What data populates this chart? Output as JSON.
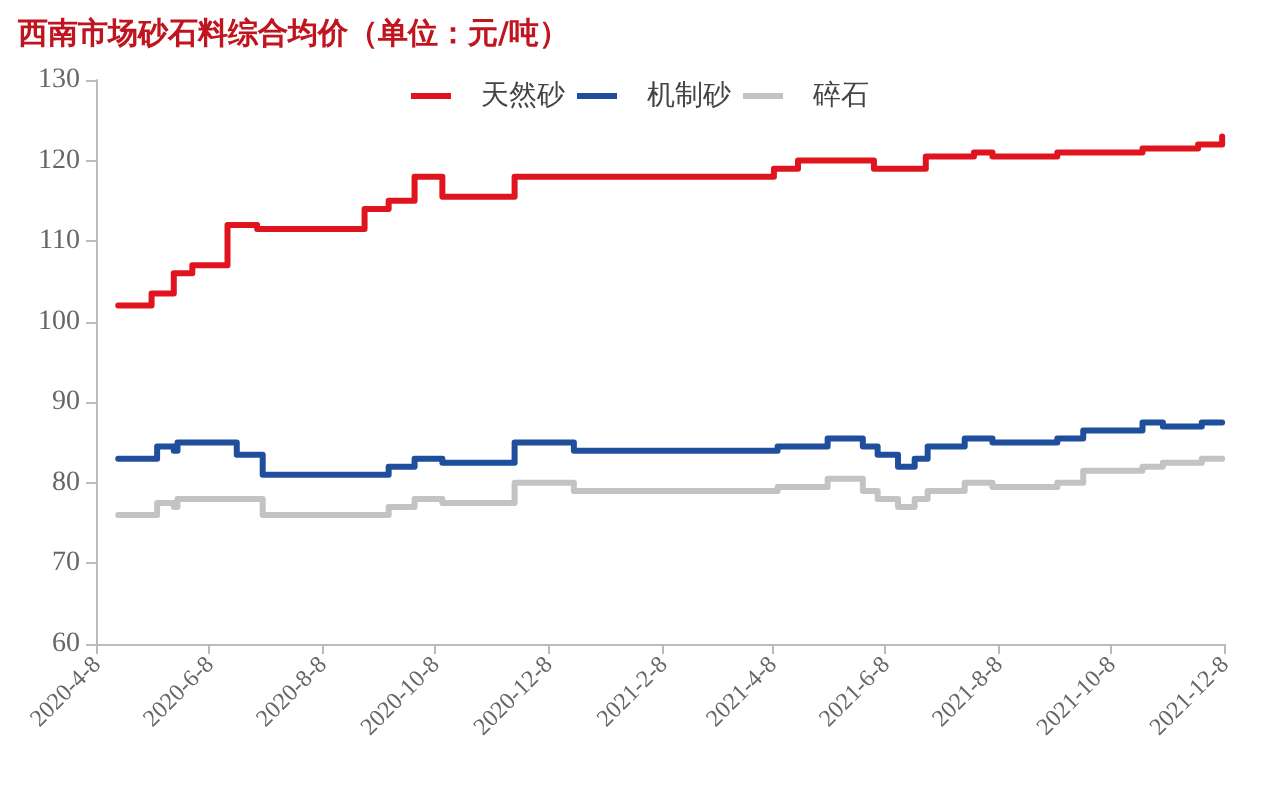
{
  "chart_data": {
    "type": "step",
    "title": "西南市场砂石料综合均价（单位：元/吨）",
    "xlim": [
      "2020-04-08",
      "2021-12-08"
    ],
    "xticks": [
      {
        "value": "2020-04-08",
        "label": "2020-4-8"
      },
      {
        "value": "2020-06-08",
        "label": "2020-6-8"
      },
      {
        "value": "2020-08-08",
        "label": "2020-8-8"
      },
      {
        "value": "2020-10-08",
        "label": "2020-10-8"
      },
      {
        "value": "2020-12-08",
        "label": "2020-12-8"
      },
      {
        "value": "2021-02-08",
        "label": "2021-2-8"
      },
      {
        "value": "2021-04-08",
        "label": "2021-4-8"
      },
      {
        "value": "2021-06-08",
        "label": "2021-6-8"
      },
      {
        "value": "2021-08-08",
        "label": "2021-8-8"
      },
      {
        "value": "2021-10-08",
        "label": "2021-10-8"
      },
      {
        "value": "2021-12-08",
        "label": "2021-12-8"
      }
    ],
    "ylim": [
      60,
      130
    ],
    "yticks": [
      60,
      70,
      80,
      90,
      100,
      110,
      120,
      130
    ],
    "legend": "top",
    "grid": false,
    "marker": "none",
    "line_style": "solid",
    "series": [
      {
        "name": "天然砂",
        "color": "#e0141e",
        "x": [
          "2020-04-20",
          "2020-05-08",
          "2020-05-20",
          "2020-05-30",
          "2020-06-18",
          "2020-07-04",
          "2020-08-31",
          "2020-09-13",
          "2020-09-27",
          "2020-10-12",
          "2020-11-20",
          "2021-04-09",
          "2021-04-22",
          "2021-06-02",
          "2021-06-30",
          "2021-07-26",
          "2021-08-05",
          "2021-09-09",
          "2021-10-25",
          "2021-11-24",
          "2021-12-07"
        ],
        "values": [
          102,
          103.5,
          106,
          107,
          112,
          111.5,
          114,
          115,
          118,
          115.5,
          118,
          119,
          120,
          119,
          120.5,
          121,
          120.5,
          121,
          121.5,
          122,
          123
        ]
      },
      {
        "name": "机制砂",
        "color": "#1f4e9c",
        "x": [
          "2020-04-20",
          "2020-05-11",
          "2020-05-20",
          "2020-05-22",
          "2020-06-23",
          "2020-07-07",
          "2020-09-13",
          "2020-09-27",
          "2020-10-12",
          "2020-11-20",
          "2020-12-22",
          "2021-04-11",
          "2021-05-08",
          "2021-05-27",
          "2021-06-04",
          "2021-06-15",
          "2021-06-24",
          "2021-07-01",
          "2021-07-21",
          "2021-08-05",
          "2021-09-09",
          "2021-09-23",
          "2021-10-25",
          "2021-11-05",
          "2021-11-26",
          "2021-12-07"
        ],
        "values": [
          83,
          84.5,
          84,
          85,
          83.5,
          81,
          82,
          83,
          82.5,
          85,
          84,
          84.5,
          85.5,
          84.5,
          83.5,
          82,
          83,
          84.5,
          85.5,
          85,
          85.5,
          86.5,
          87.5,
          87,
          87.5,
          87.5
        ]
      },
      {
        "name": "碎石",
        "color": "#c3c3c3",
        "x": [
          "2020-04-20",
          "2020-05-11",
          "2020-05-20",
          "2020-05-22",
          "2020-07-07",
          "2020-09-13",
          "2020-09-27",
          "2020-10-12",
          "2020-11-20",
          "2020-12-22",
          "2021-04-11",
          "2021-05-08",
          "2021-05-27",
          "2021-06-04",
          "2021-06-15",
          "2021-06-24",
          "2021-07-01",
          "2021-07-21",
          "2021-08-05",
          "2021-09-09",
          "2021-09-23",
          "2021-10-25",
          "2021-11-05",
          "2021-11-26",
          "2021-12-07"
        ],
        "values": [
          76,
          77.5,
          77,
          78,
          76,
          77,
          78,
          77.5,
          80,
          79,
          79.5,
          80.5,
          79,
          78,
          77,
          78,
          79,
          80,
          79.5,
          80,
          81.5,
          82,
          82.5,
          83,
          83
        ]
      }
    ]
  }
}
